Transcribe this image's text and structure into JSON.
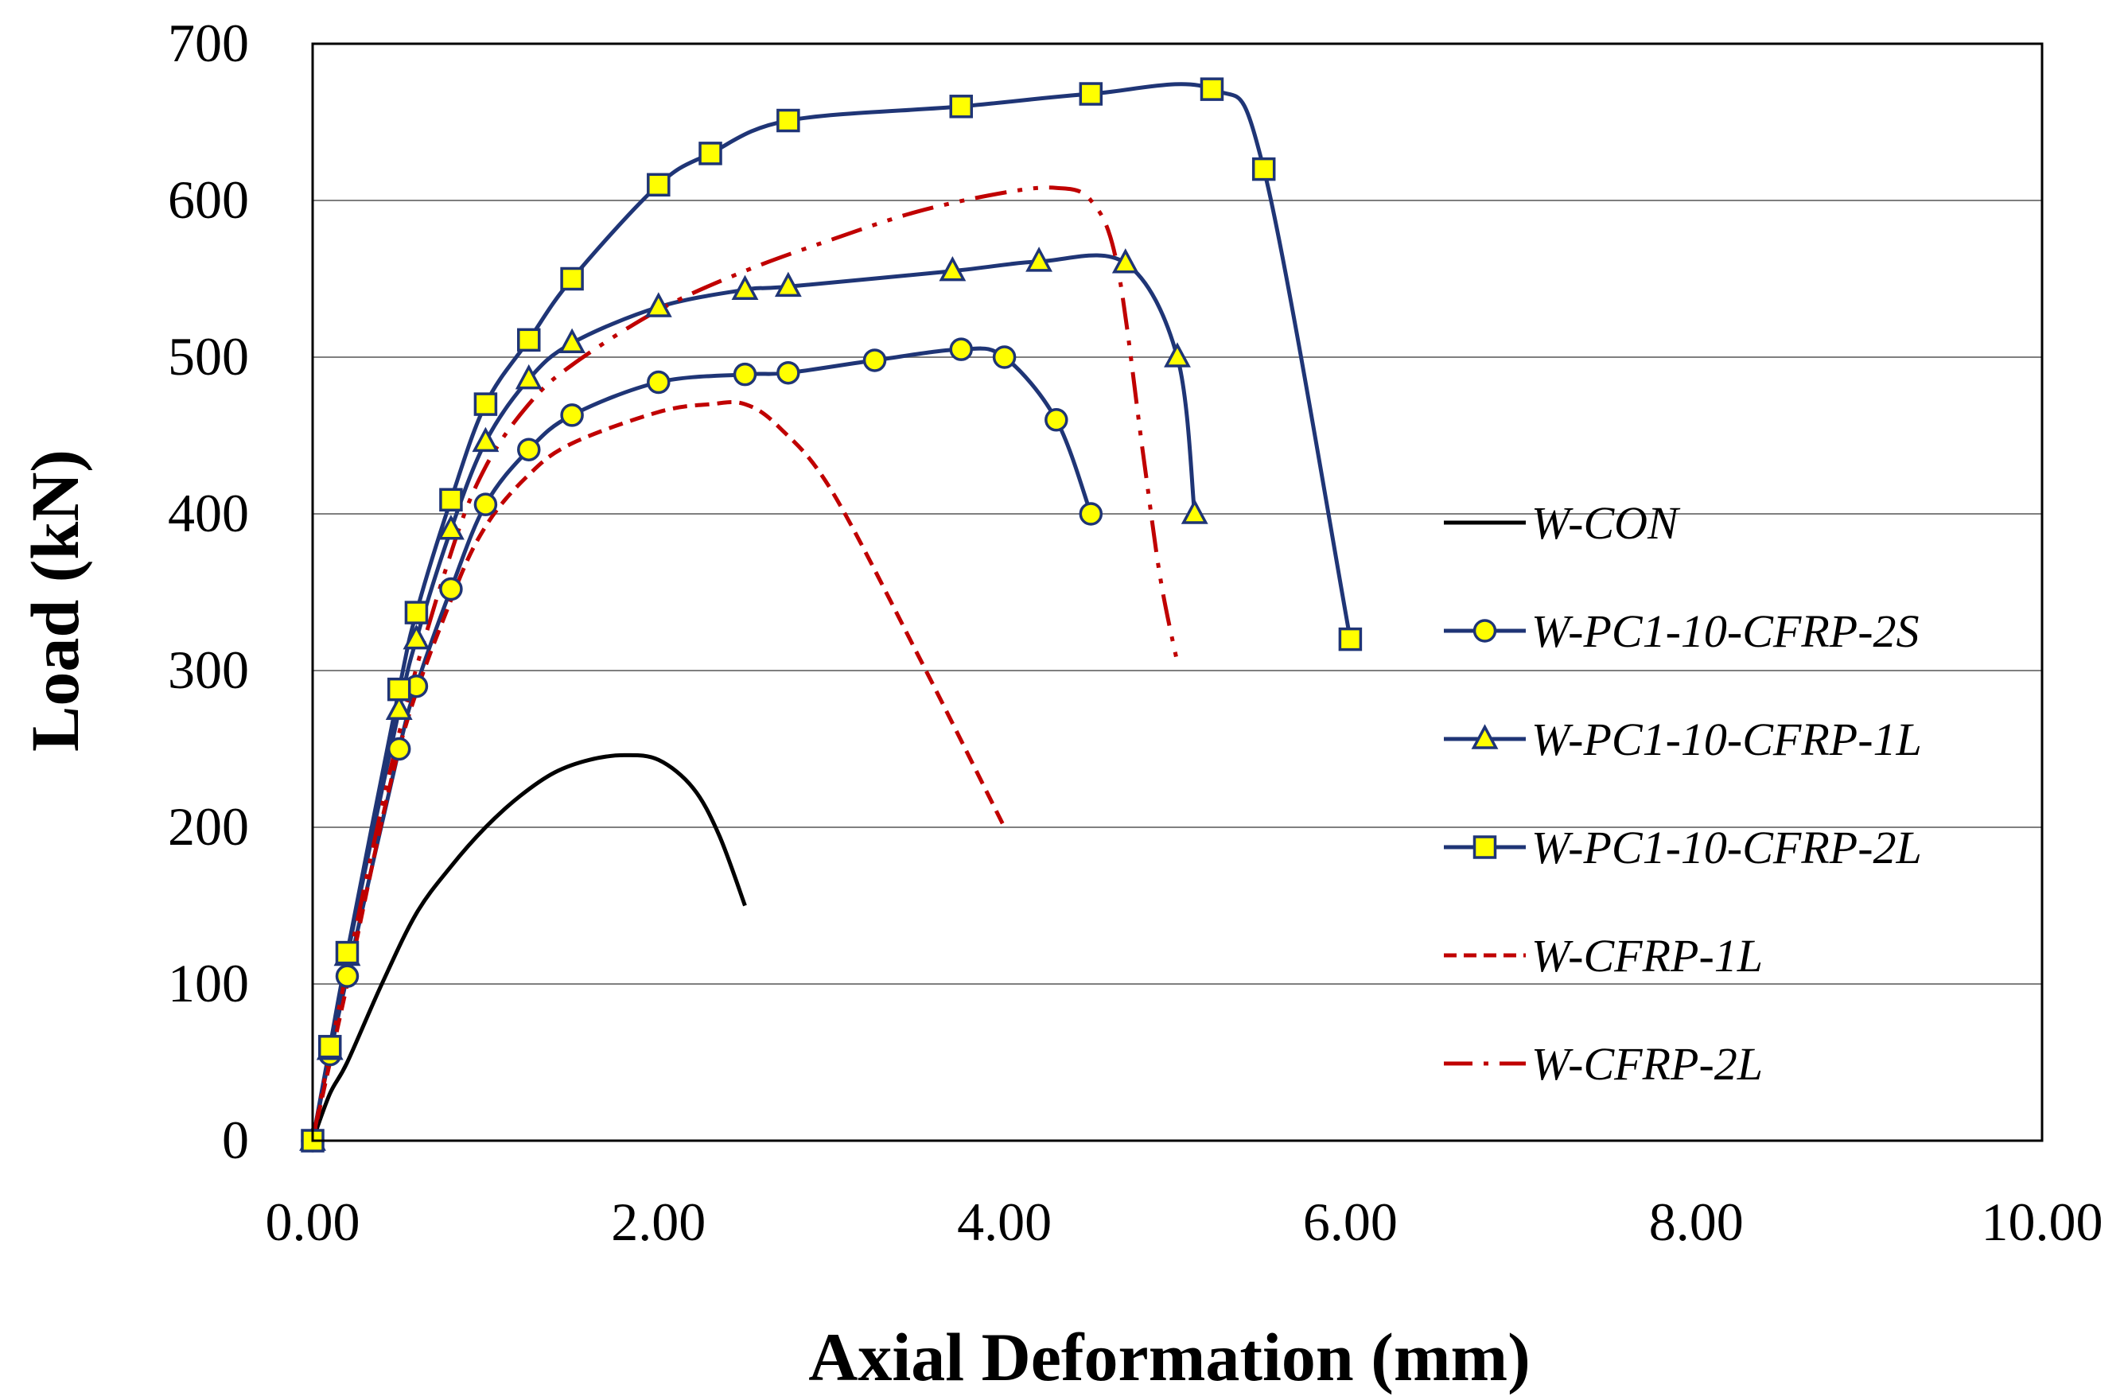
{
  "chart_data": {
    "type": "line",
    "title": "",
    "xlabel": "Axial Deformation (mm)",
    "ylabel": "Load (kN)",
    "xlim": [
      0,
      10
    ],
    "ylim": [
      0,
      700
    ],
    "xticks": [
      "0.00",
      "2.00",
      "4.00",
      "6.00",
      "8.00",
      "10.00"
    ],
    "yticks": [
      "0",
      "100",
      "200",
      "300",
      "400",
      "500",
      "600",
      "700"
    ],
    "grid": true,
    "legend_position": "right",
    "series": [
      {
        "name": "W-CON",
        "color": "#000000",
        "style": "solid",
        "marker": "none",
        "points": [
          [
            0,
            0
          ],
          [
            0.1,
            30
          ],
          [
            0.2,
            50
          ],
          [
            0.4,
            100
          ],
          [
            0.6,
            145
          ],
          [
            0.8,
            175
          ],
          [
            1.0,
            200
          ],
          [
            1.2,
            220
          ],
          [
            1.4,
            235
          ],
          [
            1.6,
            243
          ],
          [
            1.8,
            246
          ],
          [
            2.0,
            243
          ],
          [
            2.2,
            225
          ],
          [
            2.35,
            195
          ],
          [
            2.5,
            150
          ]
        ]
      },
      {
        "name": "W-PC1-10-CFRP-2S",
        "color": "#1f3576",
        "style": "solid",
        "marker": "circle",
        "points": [
          [
            0,
            0
          ],
          [
            0.1,
            55
          ],
          [
            0.2,
            105
          ],
          [
            0.5,
            250
          ],
          [
            0.6,
            290
          ],
          [
            0.8,
            352
          ],
          [
            1.0,
            406
          ],
          [
            1.25,
            441
          ],
          [
            1.5,
            463
          ],
          [
            2.0,
            484
          ],
          [
            2.5,
            489
          ],
          [
            2.75,
            490
          ],
          [
            3.25,
            498
          ],
          [
            3.75,
            505
          ],
          [
            4.0,
            500
          ],
          [
            4.3,
            460
          ],
          [
            4.5,
            400
          ]
        ]
      },
      {
        "name": "W-PC1-10-CFRP-1L",
        "color": "#1f3576",
        "style": "solid",
        "marker": "triangle",
        "points": [
          [
            0,
            0
          ],
          [
            0.1,
            58
          ],
          [
            0.2,
            118
          ],
          [
            0.5,
            275
          ],
          [
            0.6,
            320
          ],
          [
            0.8,
            390
          ],
          [
            1.0,
            446
          ],
          [
            1.25,
            486
          ],
          [
            1.5,
            509
          ],
          [
            2.0,
            532
          ],
          [
            2.5,
            543
          ],
          [
            2.75,
            545
          ],
          [
            3.7,
            555
          ],
          [
            4.2,
            561
          ],
          [
            4.7,
            560
          ],
          [
            5.0,
            500
          ],
          [
            5.1,
            400
          ]
        ]
      },
      {
        "name": "W-PC1-10-CFRP-2L",
        "color": "#1f3576",
        "style": "solid",
        "marker": "square",
        "points": [
          [
            0,
            0
          ],
          [
            0.1,
            60
          ],
          [
            0.2,
            120
          ],
          [
            0.5,
            288
          ],
          [
            0.6,
            337
          ],
          [
            0.8,
            409
          ],
          [
            1.0,
            470
          ],
          [
            1.25,
            511
          ],
          [
            1.5,
            550
          ],
          [
            2.0,
            610
          ],
          [
            2.3,
            630
          ],
          [
            2.75,
            651
          ],
          [
            3.75,
            660
          ],
          [
            4.5,
            668
          ],
          [
            5.2,
            671
          ],
          [
            5.5,
            620
          ],
          [
            6.0,
            320
          ]
        ]
      },
      {
        "name": "W-CFRP-1L",
        "color": "#c00000",
        "style": "dashed",
        "marker": "none",
        "points": [
          [
            0,
            0
          ],
          [
            0.2,
            100
          ],
          [
            0.5,
            250
          ],
          [
            0.8,
            345
          ],
          [
            1.0,
            392
          ],
          [
            1.25,
            425
          ],
          [
            1.5,
            445
          ],
          [
            2.0,
            465
          ],
          [
            2.3,
            470
          ],
          [
            2.5,
            470
          ],
          [
            2.7,
            455
          ],
          [
            3.0,
            415
          ],
          [
            3.5,
            310
          ],
          [
            4.0,
            200
          ]
        ]
      },
      {
        "name": "W-CFRP-2L",
        "color": "#c00000",
        "style": "dashdot",
        "marker": "none",
        "points": [
          [
            0,
            0
          ],
          [
            0.2,
            110
          ],
          [
            0.5,
            260
          ],
          [
            0.8,
            375
          ],
          [
            1.0,
            430
          ],
          [
            1.25,
            470
          ],
          [
            1.5,
            495
          ],
          [
            2.0,
            530
          ],
          [
            2.5,
            555
          ],
          [
            3.0,
            575
          ],
          [
            3.5,
            593
          ],
          [
            4.0,
            605
          ],
          [
            4.3,
            608
          ],
          [
            4.5,
            600
          ],
          [
            4.65,
            560
          ],
          [
            4.8,
            440
          ],
          [
            4.9,
            360
          ],
          [
            5.0,
            305
          ]
        ]
      }
    ]
  }
}
